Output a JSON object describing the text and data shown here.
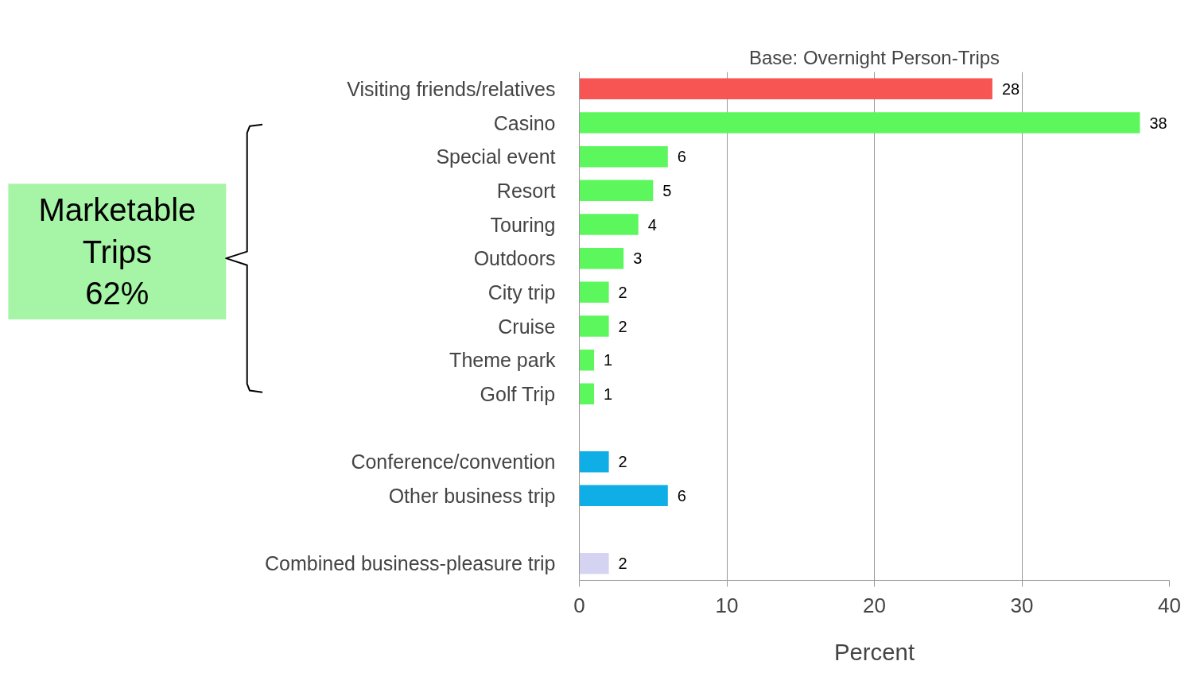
{
  "chart_data": {
    "type": "bar",
    "orientation": "horizontal",
    "title": "Base: Overnight Person-Trips",
    "xlabel": "Percent",
    "categories": [
      "Visiting friends/relatives",
      "Casino",
      "Special event",
      "Resort",
      "Touring",
      "Outdoors",
      "City trip",
      "Cruise",
      "Theme park",
      "Golf Trip",
      null,
      "Conference/convention",
      "Other business trip",
      null,
      "Combined business-pleasure trip"
    ],
    "values": [
      28,
      38,
      6,
      5,
      4,
      3,
      2,
      2,
      1,
      1,
      null,
      2,
      6,
      null,
      2
    ],
    "colors": [
      "#f75454",
      "#5cf75c",
      "#5cf75c",
      "#5cf75c",
      "#5cf75c",
      "#5cf75c",
      "#5cf75c",
      "#5cf75c",
      "#5cf75c",
      "#5cf75c",
      null,
      "#10aee6",
      "#10aee6",
      null,
      "#d4d4f2"
    ],
    "xlim": [
      0,
      40
    ],
    "xticks": [
      0,
      10,
      20,
      30,
      40
    ],
    "grid": "x",
    "data_labels": true,
    "annotations": [
      "Marketable\nTrips\n62%"
    ]
  }
}
